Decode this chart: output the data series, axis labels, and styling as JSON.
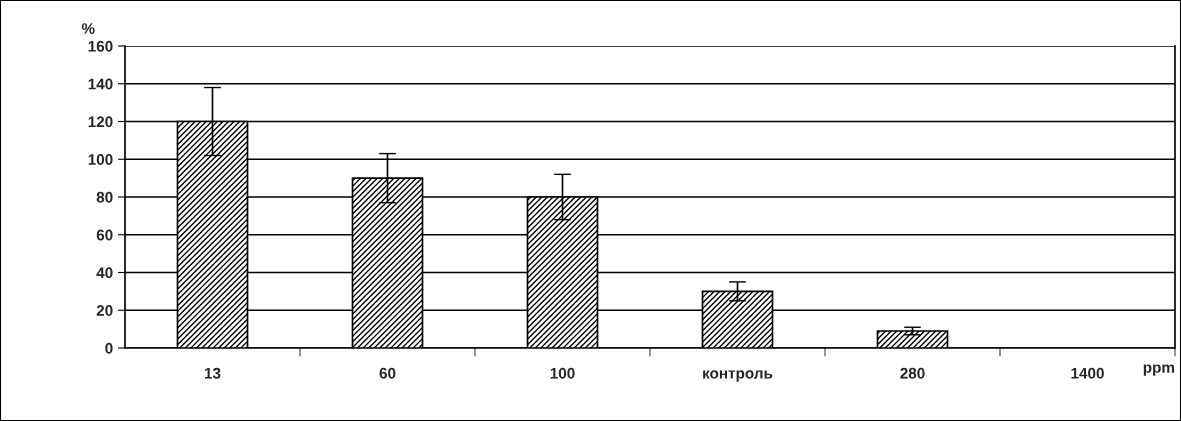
{
  "chart_data": {
    "type": "bar",
    "categories": [
      "13",
      "60",
      "100",
      "контроль",
      "280",
      "1400"
    ],
    "values": [
      120,
      90,
      80,
      30,
      9,
      null
    ],
    "errors": [
      18,
      13,
      12,
      5,
      2,
      null
    ],
    "color": "#000000",
    "ylabel": "%",
    "xlabel": "ppm",
    "ylim": [
      0,
      160
    ],
    "yticks": [
      0,
      20,
      40,
      60,
      80,
      100,
      120,
      140,
      160
    ],
    "grid": "y",
    "legend": false
  }
}
